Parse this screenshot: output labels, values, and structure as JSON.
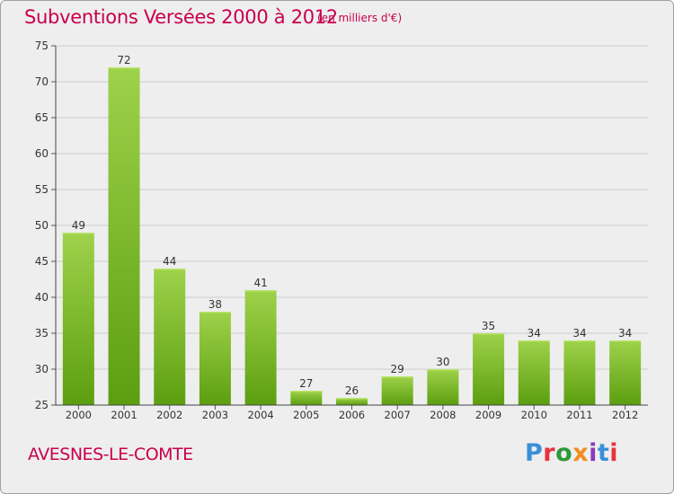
{
  "header": {
    "title": "Subventions Versées 2000 à 2012",
    "subtitle": "(en milliers d'€)"
  },
  "footer": {
    "commune": "AVESNES-LE-COMTE",
    "logo_text": "Proxiti",
    "logo_colors": [
      "#3a8fd8",
      "#e8323c",
      "#2e9a3a",
      "#f28c1e",
      "#8a3ab9",
      "#3a8fd8",
      "#e8323c"
    ]
  },
  "colors": {
    "title": "#c8004b",
    "bar_light": "#9ed24a",
    "bar_dark": "#5c9e10",
    "grid": "#cccccc",
    "background": "#eeeeee"
  },
  "chart_data": {
    "type": "bar",
    "title": "Subventions Versées 2000 à 2012",
    "subtitle": "(en milliers d'€)",
    "xlabel": "",
    "ylabel": "",
    "categories": [
      "2000",
      "2001",
      "2002",
      "2003",
      "2004",
      "2005",
      "2006",
      "2007",
      "2008",
      "2009",
      "2010",
      "2011",
      "2012"
    ],
    "values": [
      49,
      72,
      44,
      38,
      41,
      27,
      26,
      29,
      30,
      35,
      34,
      34,
      34
    ],
    "ylim": [
      25,
      75
    ],
    "yticks": [
      25,
      30,
      35,
      40,
      45,
      50,
      55,
      60,
      65,
      70,
      75
    ],
    "grid": true,
    "data_labels": true
  }
}
